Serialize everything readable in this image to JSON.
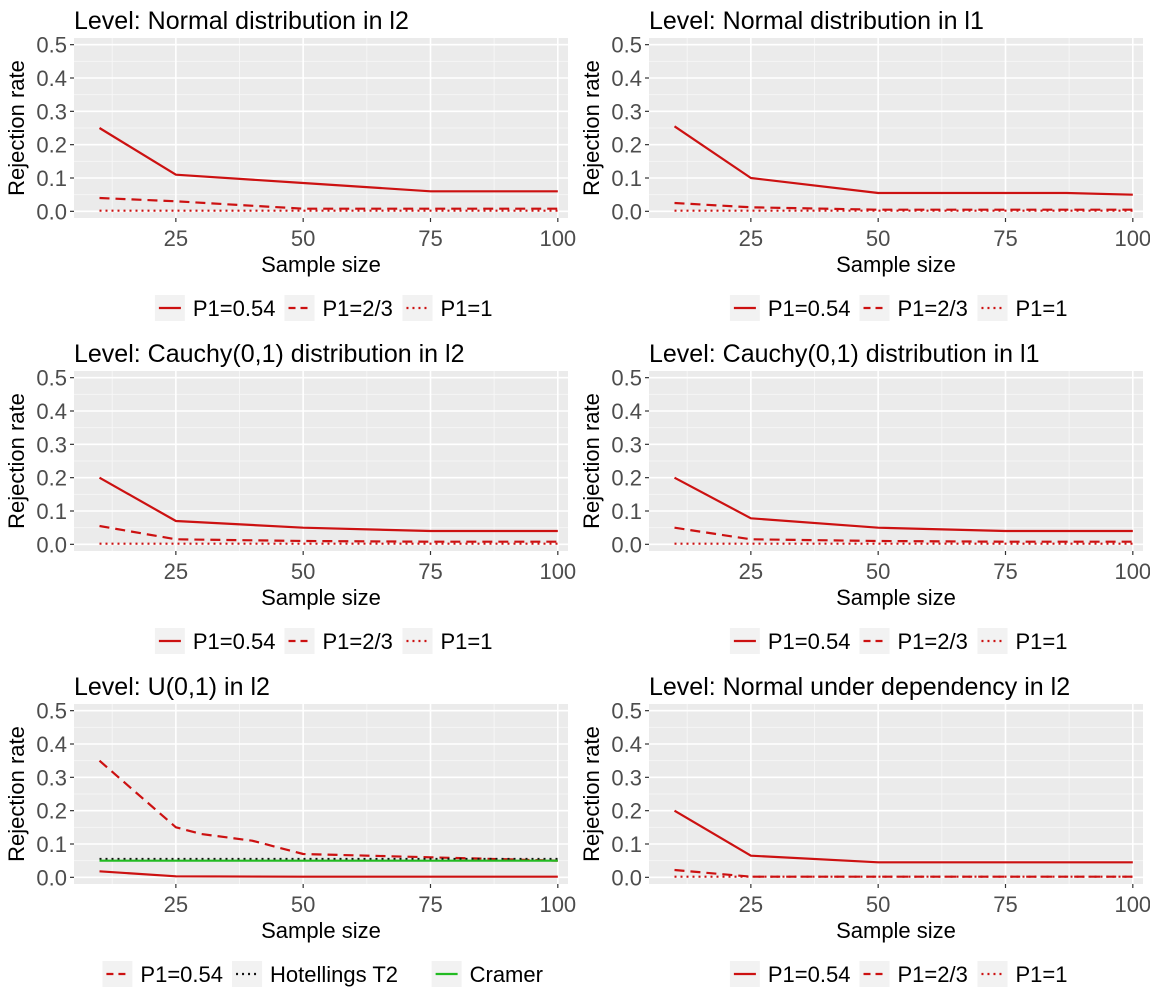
{
  "chart_data": [
    {
      "type": "line",
      "title": "Level: Normal distribution in l2",
      "xlabel": "Sample size",
      "ylabel": "Rejection rate",
      "xlim": [
        5,
        102
      ],
      "ylim": [
        -0.02,
        0.52
      ],
      "xticks": [
        25,
        50,
        75,
        100
      ],
      "yticks": [
        0.0,
        0.1,
        0.2,
        0.3,
        0.4,
        0.5
      ],
      "xtick_labels": [
        "25",
        "50",
        "75",
        "100"
      ],
      "ytick_labels": [
        "0.0",
        "0.1",
        "0.2",
        "0.3",
        "0.4",
        "0.5"
      ],
      "grid": true,
      "legend_position": "bottom",
      "series": [
        {
          "name": "P1=0.54",
          "linetype": "solid",
          "color": "#cc1111",
          "x": [
            10,
            25,
            50,
            75,
            100
          ],
          "y": [
            0.25,
            0.11,
            0.085,
            0.06,
            0.06
          ]
        },
        {
          "name": "P1=2/3",
          "linetype": "dashed",
          "color": "#cc1111",
          "x": [
            10,
            25,
            50,
            75,
            100
          ],
          "y": [
            0.04,
            0.03,
            0.008,
            0.008,
            0.008
          ]
        },
        {
          "name": "P1=1",
          "linetype": "dotted",
          "color": "#cc1111",
          "x": [
            10,
            25,
            50,
            75,
            100
          ],
          "y": [
            0.002,
            0.002,
            0.002,
            0.002,
            0.002
          ]
        }
      ]
    },
    {
      "type": "line",
      "title": "Level: Normal distribution in l1",
      "xlabel": "Sample size",
      "ylabel": "Rejection rate",
      "xlim": [
        5,
        102
      ],
      "ylim": [
        -0.02,
        0.52
      ],
      "xticks": [
        25,
        50,
        75,
        100
      ],
      "yticks": [
        0.0,
        0.1,
        0.2,
        0.3,
        0.4,
        0.5
      ],
      "xtick_labels": [
        "25",
        "50",
        "75",
        "100"
      ],
      "ytick_labels": [
        "0.0",
        "0.1",
        "0.2",
        "0.3",
        "0.4",
        "0.5"
      ],
      "grid": true,
      "legend_position": "bottom",
      "series": [
        {
          "name": "P1=0.54",
          "linetype": "solid",
          "color": "#cc1111",
          "x": [
            10,
            25,
            50,
            75,
            87,
            100
          ],
          "y": [
            0.255,
            0.1,
            0.055,
            0.055,
            0.055,
            0.05
          ]
        },
        {
          "name": "P1=2/3",
          "linetype": "dashed",
          "color": "#cc1111",
          "x": [
            10,
            25,
            50,
            75,
            100
          ],
          "y": [
            0.025,
            0.012,
            0.005,
            0.005,
            0.005
          ]
        },
        {
          "name": "P1=1",
          "linetype": "dotted",
          "color": "#cc1111",
          "x": [
            10,
            25,
            50,
            75,
            100
          ],
          "y": [
            0.002,
            0.002,
            0.002,
            0.002,
            0.002
          ]
        }
      ]
    },
    {
      "type": "line",
      "title": "Level: Cauchy(0,1) distribution in l2",
      "xlabel": "Sample size",
      "ylabel": "Rejection rate",
      "xlim": [
        5,
        102
      ],
      "ylim": [
        -0.02,
        0.52
      ],
      "xticks": [
        25,
        50,
        75,
        100
      ],
      "yticks": [
        0.0,
        0.1,
        0.2,
        0.3,
        0.4,
        0.5
      ],
      "xtick_labels": [
        "25",
        "50",
        "75",
        "100"
      ],
      "ytick_labels": [
        "0.0",
        "0.1",
        "0.2",
        "0.3",
        "0.4",
        "0.5"
      ],
      "grid": true,
      "legend_position": "bottom",
      "series": [
        {
          "name": "P1=0.54",
          "linetype": "solid",
          "color": "#cc1111",
          "x": [
            10,
            25,
            50,
            75,
            100
          ],
          "y": [
            0.2,
            0.07,
            0.05,
            0.04,
            0.04
          ]
        },
        {
          "name": "P1=2/3",
          "linetype": "dashed",
          "color": "#cc1111",
          "x": [
            10,
            25,
            50,
            75,
            100
          ],
          "y": [
            0.055,
            0.015,
            0.01,
            0.008,
            0.008
          ]
        },
        {
          "name": "P1=1",
          "linetype": "dotted",
          "color": "#cc1111",
          "x": [
            10,
            25,
            50,
            75,
            100
          ],
          "y": [
            0.002,
            0.002,
            0.002,
            0.002,
            0.002
          ]
        }
      ]
    },
    {
      "type": "line",
      "title": "Level: Cauchy(0,1) distribution in l1",
      "xlabel": "Sample size",
      "ylabel": "Rejection rate",
      "xlim": [
        5,
        102
      ],
      "ylim": [
        -0.02,
        0.52
      ],
      "xticks": [
        25,
        50,
        75,
        100
      ],
      "yticks": [
        0.0,
        0.1,
        0.2,
        0.3,
        0.4,
        0.5
      ],
      "xtick_labels": [
        "25",
        "50",
        "75",
        "100"
      ],
      "ytick_labels": [
        "0.0",
        "0.1",
        "0.2",
        "0.3",
        "0.4",
        "0.5"
      ],
      "grid": true,
      "legend_position": "bottom",
      "series": [
        {
          "name": "P1=0.54",
          "linetype": "solid",
          "color": "#cc1111",
          "x": [
            10,
            25,
            50,
            75,
            100
          ],
          "y": [
            0.2,
            0.078,
            0.05,
            0.04,
            0.04
          ]
        },
        {
          "name": "P1=2/3",
          "linetype": "dashed",
          "color": "#cc1111",
          "x": [
            10,
            25,
            50,
            75,
            100
          ],
          "y": [
            0.05,
            0.015,
            0.01,
            0.008,
            0.008
          ]
        },
        {
          "name": "P1=1",
          "linetype": "dotted",
          "color": "#cc1111",
          "x": [
            10,
            25,
            50,
            75,
            100
          ],
          "y": [
            0.002,
            0.002,
            0.002,
            0.002,
            0.002
          ]
        }
      ]
    },
    {
      "type": "line",
      "title": "Level: U(0,1) in l2",
      "xlabel": "Sample size",
      "ylabel": "Rejection rate",
      "xlim": [
        5,
        102
      ],
      "ylim": [
        -0.02,
        0.52
      ],
      "xticks": [
        25,
        50,
        75,
        100
      ],
      "yticks": [
        0.0,
        0.1,
        0.2,
        0.3,
        0.4,
        0.5
      ],
      "xtick_labels": [
        "25",
        "50",
        "75",
        "100"
      ],
      "ytick_labels": [
        "0.0",
        "0.1",
        "0.2",
        "0.3",
        "0.4",
        "0.5"
      ],
      "grid": true,
      "legend_position": "bottom",
      "series": [
        {
          "name": "P1=0.54",
          "linetype": "dashed",
          "color": "#cc1111",
          "x": [
            10,
            25,
            30,
            40,
            50,
            75,
            100
          ],
          "y": [
            0.35,
            0.15,
            0.13,
            0.11,
            0.07,
            0.06,
            0.05
          ]
        },
        {
          "name": "Hotellings T2",
          "linetype": "dotted",
          "color": "#111111",
          "x": [
            10,
            25,
            50,
            75,
            100
          ],
          "y": [
            0.055,
            0.055,
            0.055,
            0.055,
            0.055
          ]
        },
        {
          "name": "Cramer",
          "linetype": "solid",
          "color": "#22bb22",
          "x": [
            10,
            25,
            50,
            75,
            100
          ],
          "y": [
            0.05,
            0.05,
            0.05,
            0.05,
            0.05
          ]
        },
        {
          "name": "",
          "linetype": "solid",
          "color": "#cc1111",
          "x": [
            10,
            25,
            50,
            75,
            100
          ],
          "y": [
            0.018,
            0.003,
            0.002,
            0.002,
            0.002
          ]
        }
      ]
    },
    {
      "type": "line",
      "title": "Level: Normal under dependency in l2",
      "xlabel": "Sample size",
      "ylabel": "Rejection rate",
      "xlim": [
        5,
        102
      ],
      "ylim": [
        -0.02,
        0.52
      ],
      "xticks": [
        25,
        50,
        75,
        100
      ],
      "yticks": [
        0.0,
        0.1,
        0.2,
        0.3,
        0.4,
        0.5
      ],
      "xtick_labels": [
        "25",
        "50",
        "75",
        "100"
      ],
      "ytick_labels": [
        "0.0",
        "0.1",
        "0.2",
        "0.3",
        "0.4",
        "0.5"
      ],
      "grid": true,
      "legend_position": "bottom",
      "series": [
        {
          "name": "P1=0.54",
          "linetype": "solid",
          "color": "#cc1111",
          "x": [
            10,
            25,
            50,
            75,
            100
          ],
          "y": [
            0.2,
            0.065,
            0.045,
            0.045,
            0.045
          ]
        },
        {
          "name": "P1=2/3",
          "linetype": "dashed",
          "color": "#cc1111",
          "x": [
            10,
            25,
            50,
            75,
            100
          ],
          "y": [
            0.022,
            0.002,
            0.002,
            0.002,
            0.002
          ]
        },
        {
          "name": "P1=1",
          "linetype": "dotted",
          "color": "#cc1111",
          "x": [
            10,
            25,
            50,
            75,
            100
          ],
          "y": [
            0.002,
            0.002,
            0.002,
            0.002,
            0.002
          ]
        }
      ]
    }
  ]
}
